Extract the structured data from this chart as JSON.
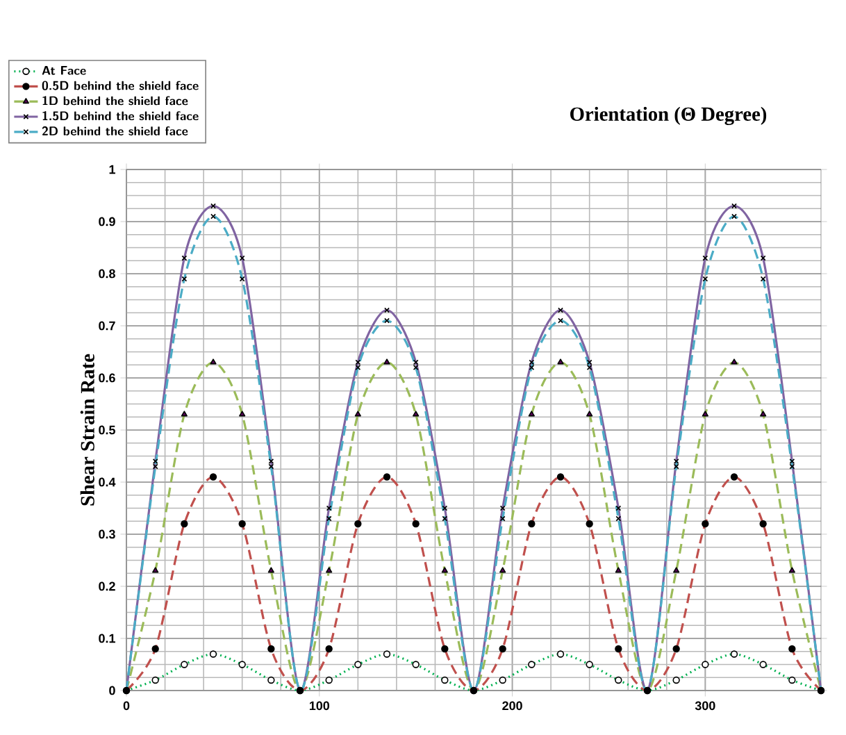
{
  "chart_data": {
    "type": "line",
    "title": "Orientation (Θ Degree)",
    "ylabel": "Shear Strain Rate",
    "x": [
      0,
      15,
      30,
      45,
      60,
      75,
      90,
      105,
      120,
      135,
      150,
      165,
      180,
      195,
      210,
      225,
      240,
      255,
      270,
      285,
      300,
      315,
      330,
      345,
      360
    ],
    "xlim": [
      0,
      360
    ],
    "xticks": [
      0,
      100,
      200,
      300
    ],
    "ylim": [
      0,
      1
    ],
    "yticks": [
      0,
      0.1,
      0.2,
      0.3,
      0.4,
      0.5,
      0.6,
      0.7,
      0.8,
      0.9,
      1
    ],
    "grid": true,
    "legend": "top left",
    "series": [
      {
        "name": "At Face",
        "color": "#00b050",
        "marker": "circle",
        "line_style": "dotted",
        "values": [
          0,
          0.02,
          0.05,
          0.07,
          0.05,
          0.02,
          0,
          0.02,
          0.05,
          0.07,
          0.05,
          0.02,
          0,
          0.02,
          0.05,
          0.07,
          0.05,
          0.02,
          0,
          0.02,
          0.05,
          0.07,
          0.05,
          0.02,
          0
        ]
      },
      {
        "name": "0.5D behind the shield face",
        "color": "#c0504d",
        "marker": "circle",
        "line_style": "dashed",
        "values": [
          0,
          0.08,
          0.32,
          0.41,
          0.32,
          0.08,
          0,
          0.08,
          0.32,
          0.41,
          0.32,
          0.08,
          0,
          0.08,
          0.32,
          0.41,
          0.32,
          0.08,
          0,
          0.08,
          0.32,
          0.41,
          0.32,
          0.08,
          0
        ]
      },
      {
        "name": "1D behind the shield face",
        "color": "#9bbb59",
        "marker": "triangle",
        "line_style": "dashed",
        "values": [
          0,
          0.23,
          0.53,
          0.63,
          0.53,
          0.23,
          0,
          0.23,
          0.53,
          0.63,
          0.53,
          0.23,
          0,
          0.23,
          0.53,
          0.63,
          0.53,
          0.23,
          0,
          0.23,
          0.53,
          0.63,
          0.53,
          0.23,
          0
        ]
      },
      {
        "name": "1.5D behind the shield face",
        "color": "#8064a2",
        "marker": "cross",
        "line_style": "solid",
        "values": [
          0,
          0.44,
          0.83,
          0.93,
          0.83,
          0.44,
          0,
          0.35,
          0.63,
          0.73,
          0.63,
          0.35,
          0,
          0.35,
          0.63,
          0.73,
          0.63,
          0.35,
          0,
          0.44,
          0.83,
          0.93,
          0.83,
          0.44,
          0
        ]
      },
      {
        "name": "2D behind the shield face",
        "color": "#4bacc6",
        "marker": "cross",
        "line_style": "dashed",
        "values": [
          0,
          0.43,
          0.79,
          0.91,
          0.79,
          0.43,
          0,
          0.33,
          0.62,
          0.71,
          0.62,
          0.33,
          0,
          0.33,
          0.62,
          0.71,
          0.62,
          0.33,
          0,
          0.43,
          0.79,
          0.91,
          0.79,
          0.43,
          0
        ]
      }
    ]
  }
}
